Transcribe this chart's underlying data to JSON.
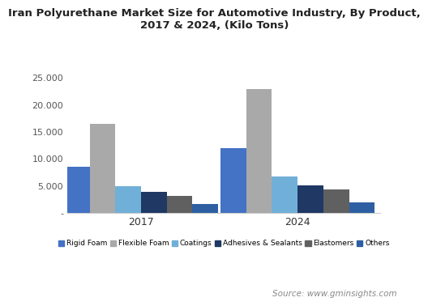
{
  "title": "Iran Polyurethane Market Size for Automotive Industry, By Product,\n2017 & 2024, (Kilo Tons)",
  "categories": [
    "2017",
    "2024"
  ],
  "products": [
    "Rigid Foam",
    "Flexible Foam",
    "Coatings",
    "Adhesives & Sealants",
    "Elastomers",
    "Others"
  ],
  "values": {
    "2017": [
      8600,
      16500,
      5000,
      3900,
      3200,
      1700
    ],
    "2024": [
      12000,
      23000,
      6700,
      5100,
      4400,
      2000
    ]
  },
  "colors": [
    "#4472C4",
    "#A9A9A9",
    "#70B0D8",
    "#1F3864",
    "#606060",
    "#4472C4"
  ],
  "ylim": [
    0,
    27000
  ],
  "yticks": [
    0,
    5000,
    10000,
    15000,
    20000,
    25000
  ],
  "ytick_labels": [
    "-",
    "5.000",
    "10.000",
    "15.000",
    "20.000",
    "25.000"
  ],
  "background_color": "#FFFFFF",
  "plot_bg_color": "#FFFFFF",
  "source_text": "Source: www.gminsights.com"
}
